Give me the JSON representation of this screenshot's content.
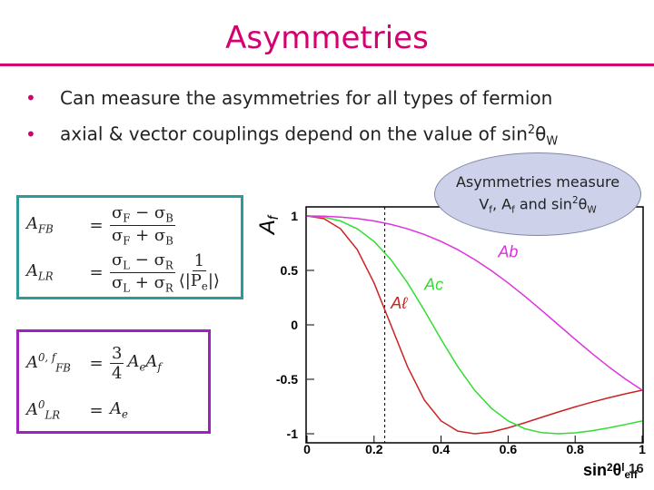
{
  "slide": {
    "title": "Asymmetries",
    "bullets": [
      [
        {
          "text": "Can measure the asymmetries for all types of fermion"
        }
      ],
      [
        {
          "text": "axial & vector couplings depend on the value of sin"
        },
        {
          "sup": "2"
        },
        {
          "text": "θ"
        },
        {
          "sub": "W"
        }
      ]
    ],
    "callout": [
      [
        {
          "text": "Asymmetries measure"
        }
      ],
      [
        {
          "text": "V"
        },
        {
          "sub": "f"
        },
        {
          "text": ",  A"
        },
        {
          "sub": "f"
        },
        {
          "text": " and sin"
        },
        {
          "sup": "2"
        },
        {
          "text": "θ"
        },
        {
          "sub": "W"
        }
      ]
    ],
    "box1": [
      {
        "lhs": [
          {
            "text": "A"
          },
          {
            "sub": "FB"
          }
        ],
        "eq": "=",
        "num": [
          {
            "text": "σ"
          },
          {
            "sub": "F"
          },
          {
            "text": " − σ"
          },
          {
            "sub": "B"
          }
        ],
        "den": [
          {
            "text": "σ"
          },
          {
            "sub": "F"
          },
          {
            "text": " + σ"
          },
          {
            "sub": "B"
          }
        ]
      },
      {
        "lhs": [
          {
            "text": "A"
          },
          {
            "sub": "LR"
          }
        ],
        "eq": "=",
        "num": [
          {
            "text": "σ"
          },
          {
            "sub": "L"
          },
          {
            "text": " − σ"
          },
          {
            "sub": "R"
          }
        ],
        "den": [
          {
            "text": "σ"
          },
          {
            "sub": "L"
          },
          {
            "text": " + σ"
          },
          {
            "sub": "R"
          }
        ],
        "num2": [
          {
            "text": "1"
          }
        ],
        "den2": [
          {
            "text": "⟨|P"
          },
          {
            "sub": "e"
          },
          {
            "text": "|⟩"
          }
        ]
      }
    ],
    "box2": [
      {
        "lhs": [
          {
            "text": "A"
          },
          {
            "sup": "0, f"
          },
          {
            "sub": "FB"
          }
        ],
        "eq": "=",
        "num": [
          {
            "text": "3"
          }
        ],
        "den": [
          {
            "text": "4"
          }
        ],
        "rhs": [
          {
            "text": "A"
          },
          {
            "sub": "e"
          },
          {
            "text": "A"
          },
          {
            "sub": "f"
          }
        ]
      },
      {
        "lhs": [
          {
            "text": "A"
          },
          {
            "sup": "0"
          },
          {
            "sub": "LR"
          }
        ],
        "eq": "=",
        "rhs": [
          {
            "text": "A"
          },
          {
            "sub": "e"
          }
        ]
      }
    ],
    "page_number": "16"
  },
  "chart_data": {
    "type": "line",
    "ylabel": [
      {
        "text": "A"
      },
      {
        "sub": "f"
      }
    ],
    "xlabel": [
      {
        "text": "sin"
      },
      {
        "sup": "2"
      },
      {
        "text": "θ"
      },
      {
        "sup": "l"
      },
      {
        "sub": "eff"
      }
    ],
    "x": [
      0,
      0.05,
      0.1,
      0.15,
      0.2,
      0.25,
      0.3,
      0.35,
      0.4,
      0.45,
      0.5,
      0.55,
      0.6,
      0.65,
      0.7,
      0.75,
      0.8,
      0.85,
      0.9,
      0.95,
      1
    ],
    "series": [
      {
        "name": "Aℓ",
        "color": "#cc2222",
        "values": [
          1,
          0.976,
          0.882,
          0.69,
          0.385,
          0,
          -0.385,
          -0.69,
          -0.882,
          -0.976,
          -1,
          -0.984,
          -0.946,
          -0.899,
          -0.849,
          -0.8,
          -0.753,
          -0.71,
          -0.67,
          -0.633,
          -0.6
        ]
      },
      {
        "name": "Ac",
        "color": "#33dd33",
        "values": [
          1,
          0.99,
          0.954,
          0.882,
          0.766,
          0.6,
          0.385,
          0.133,
          -0.133,
          -0.385,
          -0.6,
          -0.766,
          -0.882,
          -0.954,
          -0.99,
          -1,
          -0.992,
          -0.973,
          -0.946,
          -0.915,
          -0.882
        ]
      },
      {
        "name": "Ab",
        "color": "#dd33dd",
        "values": [
          1,
          0.998,
          0.99,
          0.976,
          0.954,
          0.923,
          0.882,
          0.83,
          0.766,
          0.69,
          0.6,
          0.498,
          0.385,
          0.262,
          0.133,
          0,
          -0.133,
          -0.262,
          -0.385,
          -0.498,
          -0.6
        ]
      }
    ],
    "reference_x": 0.232,
    "xlim": [
      0,
      1
    ],
    "xticks": [
      0,
      0.2,
      0.4,
      0.6,
      0.8,
      1
    ],
    "ylim": [
      -1,
      1
    ],
    "yticks": [
      1,
      0.5,
      0,
      -0.5,
      -1
    ]
  }
}
